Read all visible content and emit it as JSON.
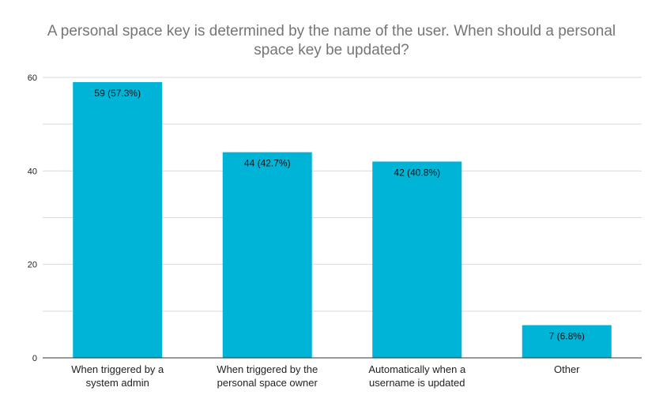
{
  "chart_data": {
    "type": "bar",
    "title_lines": [
      "A personal space key is determined by the name of the user. When should a personal",
      "space key be updated?"
    ],
    "categories": [
      [
        "When triggered by a",
        "system admin"
      ],
      [
        "When triggered by the",
        "personal space owner"
      ],
      [
        "Automatically when a",
        "username is updated"
      ],
      [
        "Other"
      ]
    ],
    "values": [
      59,
      44,
      42,
      7
    ],
    "data_labels": [
      "59 (57.3%)",
      "44 (42.7%)",
      "42 (40.8%)",
      "7 (6.8%)"
    ],
    "xlabel": "",
    "ylabel": "",
    "ylim": [
      0,
      60
    ],
    "y_ticks": [
      0,
      20,
      40,
      60
    ],
    "grid": true,
    "legend": "none",
    "bar_color": "#00b4d8",
    "grid_color": "#d9d9d9",
    "axis_color": "#333333"
  }
}
